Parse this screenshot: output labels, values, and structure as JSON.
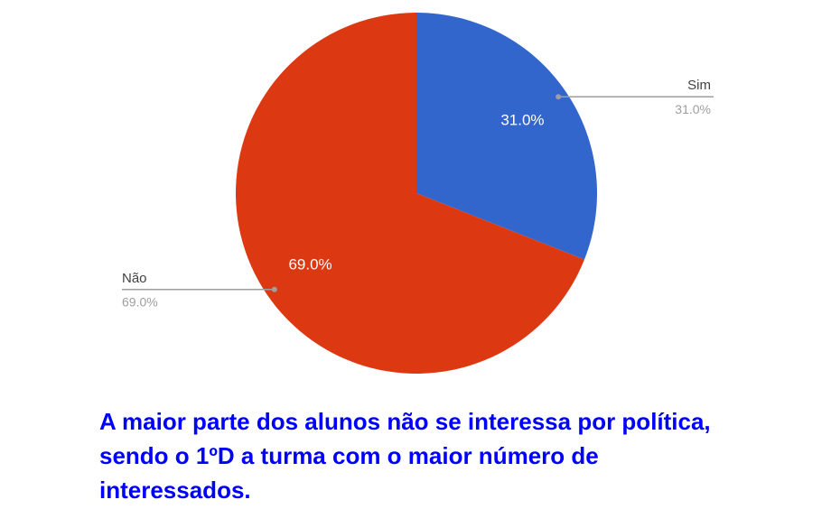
{
  "chart_data": {
    "type": "pie",
    "categories": [
      "Sim",
      "Não"
    ],
    "values": [
      31,
      69
    ],
    "value_labels": [
      "31.0%",
      "69.0%"
    ],
    "colors": [
      "#3366cc",
      "#dc3912"
    ],
    "caption": "A maior parte dos alunos não se interessa por política, sendo o 1ºD a turma com o maior número de interessados."
  }
}
